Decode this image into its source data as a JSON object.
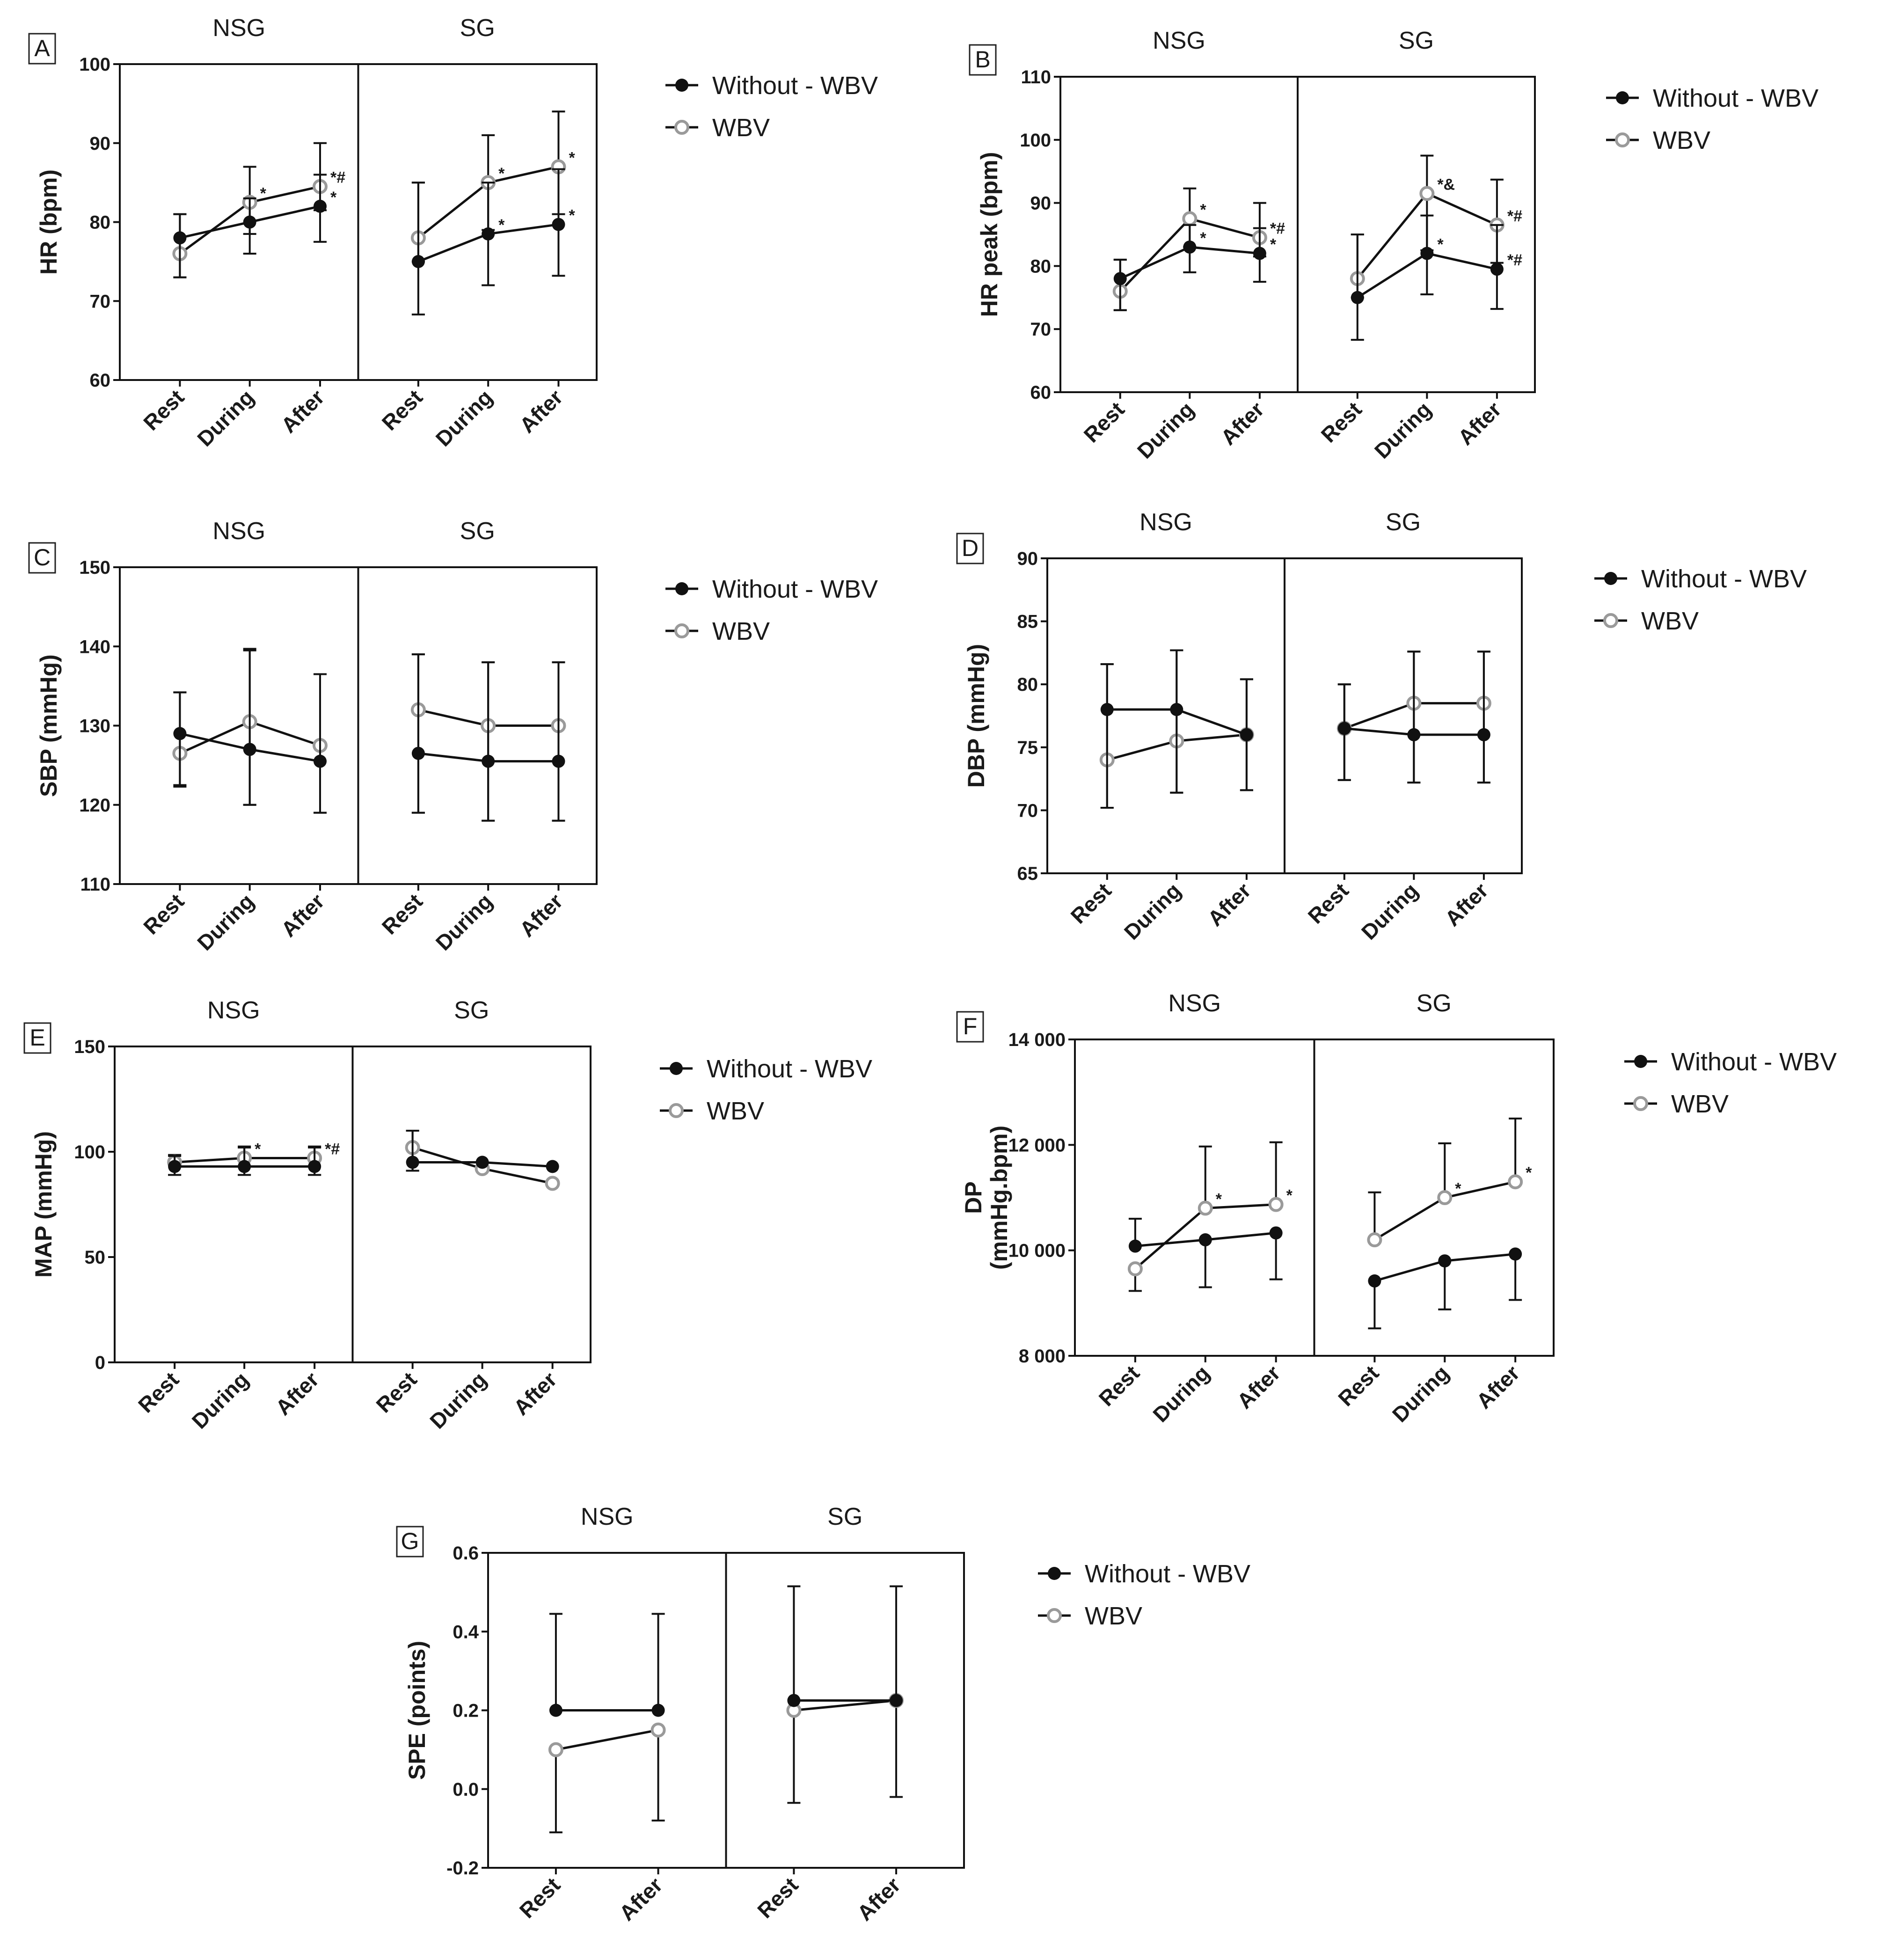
{
  "legend": {
    "without": "Without - WBV",
    "wbv": "WBV"
  },
  "colors": {
    "without": "#111111",
    "wbv": "#9a9a9a"
  },
  "chart_data": [
    {
      "id": "A",
      "type": "line",
      "ylabel": "HR  (bpm)",
      "ylim": [
        60,
        100
      ],
      "yticks": [
        "60",
        "70",
        "80",
        "90",
        "100"
      ],
      "groups": [
        {
          "name": "NSG",
          "categories": [
            "Rest",
            "During",
            "After"
          ],
          "series": [
            {
              "name": "Without - WBV",
              "values": [
                78,
                80,
                82
              ],
              "err_up": [
                3,
                3,
                4
              ],
              "err_down": [
                5,
                4,
                4.5
              ],
              "annotations": [
                "",
                "",
                "*"
              ]
            },
            {
              "name": "WBV",
              "values": [
                76,
                82.5,
                84.5
              ],
              "err_up": [
                5,
                4.5,
                5.5
              ],
              "err_down": [
                3,
                4,
                3
              ],
              "annotations": [
                "",
                "*",
                "*#"
              ]
            }
          ]
        },
        {
          "name": "SG",
          "categories": [
            "Rest",
            "During",
            "After"
          ],
          "series": [
            {
              "name": "Without - WBV",
              "values": [
                75,
                78.5,
                79.7
              ],
              "err_up": [
                10,
                6.5,
                7
              ],
              "err_down": [
                6.7,
                6.5,
                6.5
              ],
              "annotations": [
                "",
                "*",
                "*"
              ]
            },
            {
              "name": "WBV",
              "values": [
                78,
                85,
                87
              ],
              "err_up": [
                7,
                6,
                7
              ],
              "err_down": [
                3,
                6,
                6
              ],
              "annotations": [
                "",
                "*",
                "*"
              ]
            }
          ]
        }
      ]
    },
    {
      "id": "B",
      "type": "line",
      "ylabel": "HR peak (bpm)",
      "ylim": [
        60,
        110
      ],
      "yticks": [
        "60",
        "70",
        "80",
        "90",
        "100",
        "110"
      ],
      "groups": [
        {
          "name": "NSG",
          "categories": [
            "Rest",
            "During",
            "After"
          ],
          "series": [
            {
              "name": "Without - WBV",
              "values": [
                78,
                83,
                82
              ],
              "err_up": [
                3,
                3.5,
                4
              ],
              "err_down": [
                5,
                4,
                4.5
              ],
              "annotations": [
                "",
                "*",
                "*"
              ]
            },
            {
              "name": "WBV",
              "values": [
                76,
                87.5,
                84.5
              ],
              "err_up": [
                5,
                4.8,
                5.5
              ],
              "err_down": [
                3,
                4.5,
                3
              ],
              "annotations": [
                "",
                "*",
                "*#"
              ]
            }
          ]
        },
        {
          "name": "SG",
          "categories": [
            "Rest",
            "During",
            "After"
          ],
          "series": [
            {
              "name": "Without - WBV",
              "values": [
                75,
                82,
                79.5
              ],
              "err_up": [
                10,
                6,
                7
              ],
              "err_down": [
                6.7,
                6.5,
                6.3
              ],
              "annotations": [
                "",
                "*",
                "*#"
              ]
            },
            {
              "name": "WBV",
              "values": [
                78,
                91.5,
                86.5
              ],
              "err_up": [
                7,
                6,
                7.2
              ],
              "err_down": [
                3,
                9,
                6
              ],
              "annotations": [
                "",
                "*&",
                "*#"
              ]
            }
          ]
        }
      ]
    },
    {
      "id": "C",
      "type": "line",
      "ylabel": "SBP  (mmHg)",
      "ylim": [
        110,
        150
      ],
      "yticks": [
        "110",
        "120",
        "130",
        "140",
        "150"
      ],
      "groups": [
        {
          "name": "NSG",
          "categories": [
            "Rest",
            "During",
            "After"
          ],
          "series": [
            {
              "name": "Without - WBV",
              "values": [
                129,
                127,
                125.5
              ],
              "err_up": [
                5.2,
                12.5,
                11
              ],
              "err_down": [
                6.7,
                7,
                6.5
              ],
              "annotations": [
                "",
                "",
                ""
              ]
            },
            {
              "name": "WBV",
              "values": [
                126.5,
                130.5,
                127.5
              ],
              "err_up": [
                7.7,
                9.2,
                9
              ],
              "err_down": [
                4,
                10.5,
                8.5
              ],
              "annotations": [
                "",
                "",
                ""
              ]
            }
          ]
        },
        {
          "name": "SG",
          "categories": [
            "Rest",
            "During",
            "After"
          ],
          "series": [
            {
              "name": "Without - WBV",
              "values": [
                126.5,
                125.5,
                125.5
              ],
              "err_up": [
                12.5,
                12.5,
                12.5
              ],
              "err_down": [
                7.5,
                7.5,
                7.5
              ],
              "annotations": [
                "",
                "",
                ""
              ]
            },
            {
              "name": "WBV",
              "values": [
                132,
                130,
                130
              ],
              "err_up": [
                7,
                8,
                8
              ],
              "err_down": [
                13,
                12,
                12
              ],
              "annotations": [
                "",
                "",
                ""
              ]
            }
          ]
        }
      ]
    },
    {
      "id": "D",
      "type": "line",
      "ylabel": "DBP  (mmHg)",
      "ylim": [
        65,
        90
      ],
      "yticks": [
        "65",
        "70",
        "75",
        "80",
        "85",
        "90"
      ],
      "groups": [
        {
          "name": "NSG",
          "categories": [
            "Rest",
            "During",
            "After"
          ],
          "series": [
            {
              "name": "Without - WBV",
              "values": [
                78,
                78,
                76
              ],
              "err_up": [
                3.6,
                4.7,
                4.4
              ],
              "err_down": [
                7.8,
                6.6,
                4.4
              ],
              "annotations": [
                "",
                "",
                ""
              ]
            },
            {
              "name": "WBV",
              "values": [
                74,
                75.5,
                76
              ],
              "err_up": [
                7.6,
                7.2,
                4.4
              ],
              "err_down": [
                3.8,
                4.1,
                4.4
              ],
              "annotations": [
                "",
                "",
                ""
              ]
            }
          ]
        },
        {
          "name": "SG",
          "categories": [
            "Rest",
            "During",
            "After"
          ],
          "series": [
            {
              "name": "Without - WBV",
              "values": [
                76.5,
                76,
                76
              ],
              "err_up": [
                3.5,
                6.6,
                6.6
              ],
              "err_down": [
                4.1,
                3.8,
                3.8
              ],
              "annotations": [
                "",
                "",
                ""
              ]
            },
            {
              "name": "WBV",
              "values": [
                76.5,
                78.5,
                78.5
              ],
              "err_up": [
                3.5,
                4.1,
                4.1
              ],
              "err_down": [
                4.1,
                6.3,
                6.3
              ],
              "annotations": [
                "",
                "",
                ""
              ]
            }
          ]
        }
      ]
    },
    {
      "id": "E",
      "type": "line",
      "ylabel": "MAP (mmHg)",
      "ylim": [
        0,
        150
      ],
      "yticks": [
        "0",
        "50",
        "100",
        "150"
      ],
      "groups": [
        {
          "name": "NSG",
          "categories": [
            "Rest",
            "During",
            "After"
          ],
          "series": [
            {
              "name": "Without - WBV",
              "values": [
                93,
                93,
                93
              ],
              "err_up": [
                5,
                9,
                9
              ],
              "err_down": [
                4,
                4,
                4
              ],
              "annotations": [
                "",
                "",
                ""
              ]
            },
            {
              "name": "WBV",
              "values": [
                95,
                97,
                97
              ],
              "err_up": [
                3.5,
                5.5,
                5.5
              ],
              "err_down": [
                6,
                8,
                8
              ],
              "annotations": [
                "",
                "*",
                "*#"
              ]
            }
          ]
        },
        {
          "name": "SG",
          "categories": [
            "Rest",
            "During",
            "After"
          ],
          "series": [
            {
              "name": "Without - WBV",
              "values": [
                95,
                95,
                93
              ],
              "err_up": [
                15,
                0,
                0
              ],
              "err_down": [
                4,
                0,
                0
              ],
              "annotations": [
                "",
                "",
                ""
              ]
            },
            {
              "name": "WBV",
              "values": [
                102,
                92,
                85
              ],
              "err_up": [
                8,
                0,
                0
              ],
              "err_down": [
                11,
                0,
                0
              ],
              "annotations": [
                "",
                "",
                ""
              ]
            }
          ]
        }
      ]
    },
    {
      "id": "F",
      "type": "line",
      "ylabel": "DP",
      "ylabel2": "(mmHg.bpm)",
      "ylim": [
        8000,
        14000
      ],
      "yticks": [
        "8 000",
        "10 000",
        "12 000",
        "14 000"
      ],
      "groups": [
        {
          "name": "NSG",
          "categories": [
            "Rest",
            "During",
            "After"
          ],
          "series": [
            {
              "name": "Without - WBV",
              "values": [
                10080,
                10200,
                10330
              ],
              "err_up": [
                520,
                0,
                0
              ],
              "err_down": [
                0,
                900,
                880
              ],
              "annotations": [
                "",
                "",
                ""
              ]
            },
            {
              "name": "WBV",
              "values": [
                9650,
                10800,
                10870
              ],
              "err_up": [
                0,
                1170,
                1180
              ],
              "err_down": [
                420,
                0,
                0
              ],
              "annotations": [
                "",
                "*",
                "*"
              ]
            }
          ]
        },
        {
          "name": "SG",
          "categories": [
            "Rest",
            "During",
            "After"
          ],
          "series": [
            {
              "name": "Without - WBV",
              "values": [
                9420,
                9800,
                9930
              ],
              "err_up": [
                0,
                0,
                0
              ],
              "err_down": [
                900,
                920,
                870
              ],
              "annotations": [
                "",
                "",
                ""
              ]
            },
            {
              "name": "WBV",
              "values": [
                10200,
                11000,
                11300
              ],
              "err_up": [
                900,
                1030,
                1200
              ],
              "err_down": [
                0,
                0,
                0
              ],
              "annotations": [
                "",
                "*",
                "*"
              ]
            }
          ]
        }
      ]
    },
    {
      "id": "G",
      "type": "line",
      "ylabel": "SPE (points)",
      "ylim": [
        -0.2,
        0.6
      ],
      "yticks": [
        "-0.2",
        "0.0",
        "0.2",
        "0.4",
        "0.6"
      ],
      "groups": [
        {
          "name": "NSG",
          "categories": [
            "Rest",
            "After"
          ],
          "series": [
            {
              "name": "Without - WBV",
              "values": [
                0.2,
                0.2
              ],
              "err_up": [
                0.245,
                0.245
              ],
              "err_down": [
                0,
                0
              ],
              "annotations": [
                "",
                ""
              ]
            },
            {
              "name": "WBV",
              "values": [
                0.1,
                0.15
              ],
              "err_up": [
                0,
                0
              ],
              "err_down": [
                0.21,
                0.23
              ],
              "annotations": [
                "",
                ""
              ]
            }
          ]
        },
        {
          "name": "SG",
          "categories": [
            "Rest",
            "After"
          ],
          "series": [
            {
              "name": "Without - WBV",
              "values": [
                0.225,
                0.225
              ],
              "err_up": [
                0.29,
                0.29
              ],
              "err_down": [
                0,
                0
              ],
              "annotations": [
                "",
                ""
              ]
            },
            {
              "name": "WBV",
              "values": [
                0.2,
                0.225
              ],
              "err_up": [
                0,
                0
              ],
              "err_down": [
                0.235,
                0.245
              ],
              "annotations": [
                "",
                ""
              ]
            }
          ]
        }
      ]
    }
  ]
}
